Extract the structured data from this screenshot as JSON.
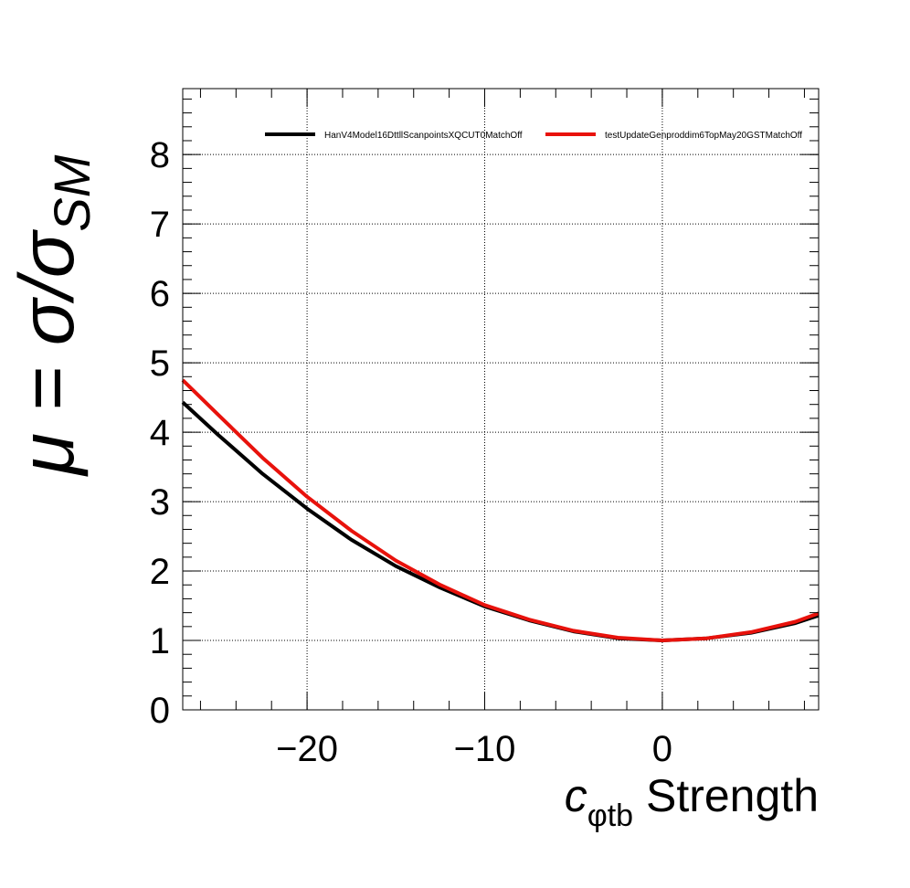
{
  "chart_data": {
    "type": "line",
    "xlabel": {
      "main": "c",
      "subscript": "φtb",
      "suffix": " Strength"
    },
    "ylabel": {
      "prefix": "μ = σ/σ",
      "subscript": "SM"
    },
    "xlim": [
      -27,
      8.8
    ],
    "ylim": [
      0,
      8.95
    ],
    "x_ticks": [
      -20,
      -10,
      0
    ],
    "x_tick_labels": [
      "−20",
      "−10",
      "0"
    ],
    "y_ticks": [
      0,
      1,
      2,
      3,
      4,
      5,
      6,
      7,
      8
    ],
    "y_tick_labels": [
      "0",
      "1",
      "2",
      "3",
      "4",
      "5",
      "6",
      "7",
      "8"
    ],
    "grid": true,
    "legend_position": "top",
    "series": [
      {
        "name": "HanV4Model16DttllScanpointsXQCUT0MatchOff",
        "color": "#000000",
        "x": [
          -27,
          -25,
          -22.5,
          -20,
          -17.5,
          -15,
          -12.5,
          -10,
          -7.5,
          -5,
          -2.5,
          0,
          2.5,
          5,
          7.5,
          8.8
        ],
        "y": [
          4.43,
          3.96,
          3.4,
          2.9,
          2.45,
          2.07,
          1.76,
          1.49,
          1.29,
          1.13,
          1.03,
          1.0,
          1.03,
          1.11,
          1.25,
          1.36
        ]
      },
      {
        "name": "testUpdateGenproddim6TopMay20GSTMatchOff",
        "color": "#e8120c",
        "x": [
          -27,
          -25,
          -22.5,
          -20,
          -17.5,
          -15,
          -12.5,
          -10,
          -7.5,
          -5,
          -2.5,
          0,
          2.5,
          5,
          7.5,
          8.8
        ],
        "y": [
          4.75,
          4.25,
          3.63,
          3.07,
          2.58,
          2.15,
          1.8,
          1.51,
          1.3,
          1.14,
          1.04,
          1.0,
          1.03,
          1.12,
          1.27,
          1.39
        ]
      }
    ]
  }
}
